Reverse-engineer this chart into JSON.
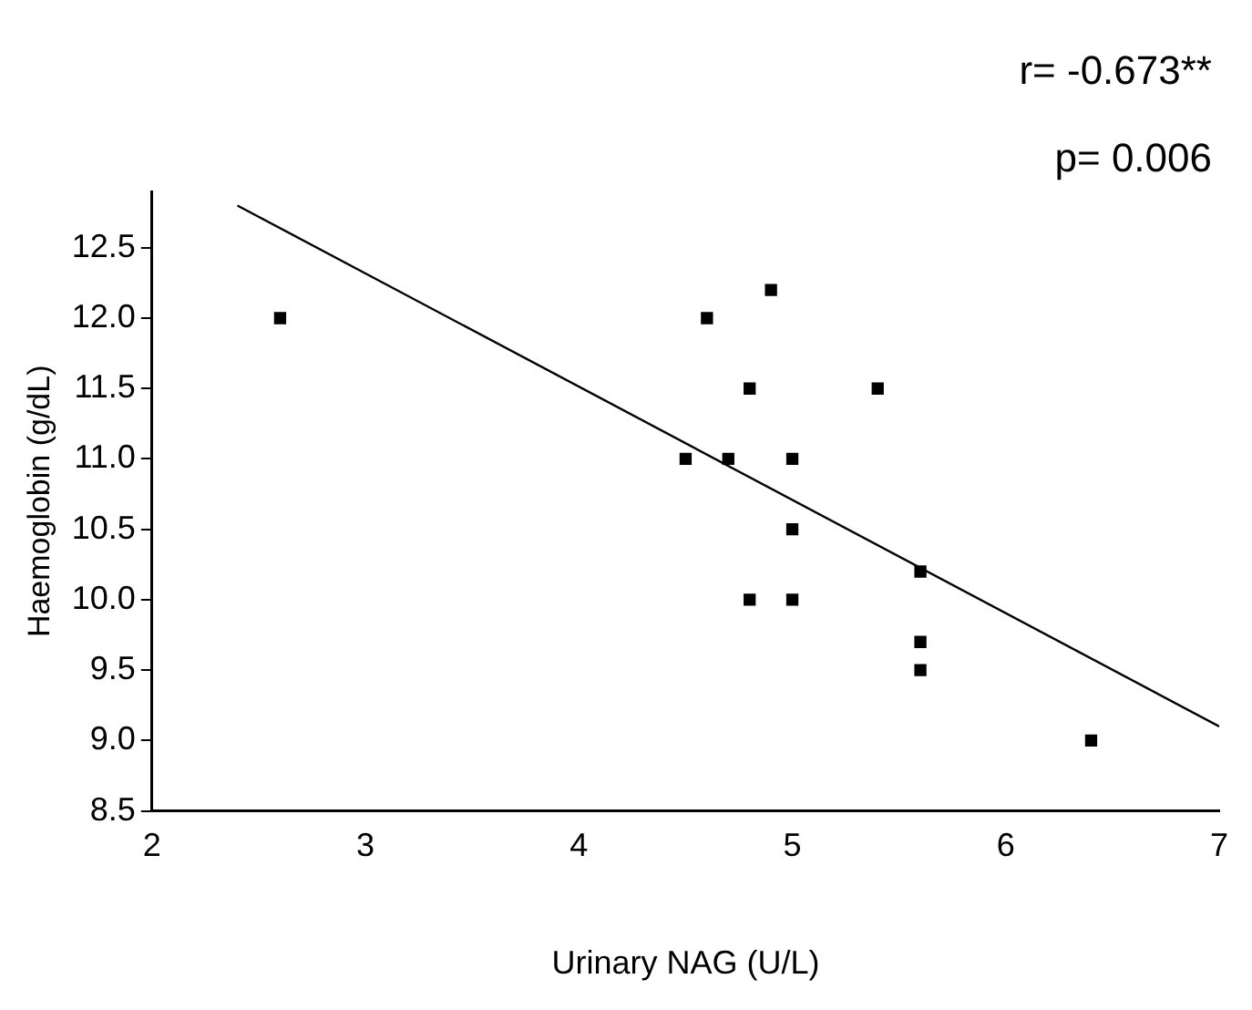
{
  "chart_data": {
    "type": "scatter",
    "xlabel": "Urinary NAG (U/L)",
    "ylabel": "Haemoglobin (g/dL)",
    "annotations": [
      "r= -0.673**",
      "p= 0.006"
    ],
    "xlim": [
      2,
      7
    ],
    "xticks": [
      2,
      3,
      4,
      5,
      6,
      7
    ],
    "ylim": [
      8.5,
      12.9
    ],
    "yticks": [
      8.5,
      {
        "value": 9,
        "label": "9.0"
      },
      9.5,
      {
        "value": 10,
        "label": "10.0"
      },
      10.5,
      {
        "value": 11,
        "label": "11.0"
      },
      11.5,
      {
        "value": 12,
        "label": "12.0"
      },
      12.5
    ],
    "grid": false,
    "legend": false,
    "series": [
      {
        "marker": "square",
        "color": "#000000",
        "x": [
          2.6,
          4.9,
          4.6,
          4.8,
          5.4,
          4.5,
          4.7,
          5.0,
          5.0,
          5.6,
          4.8,
          5.0,
          5.6,
          5.6,
          6.4
        ],
        "values": [
          12.0,
          12.2,
          12.0,
          11.5,
          11.5,
          11.0,
          11.0,
          11.0,
          10.5,
          10.2,
          10.0,
          10.0,
          9.7,
          9.5,
          9.0
        ]
      },
      {
        "type": "line",
        "marker": "none",
        "color": "#000000",
        "x": [
          2.4,
          7
        ],
        "values": [
          12.8,
          9.1
        ]
      }
    ]
  }
}
